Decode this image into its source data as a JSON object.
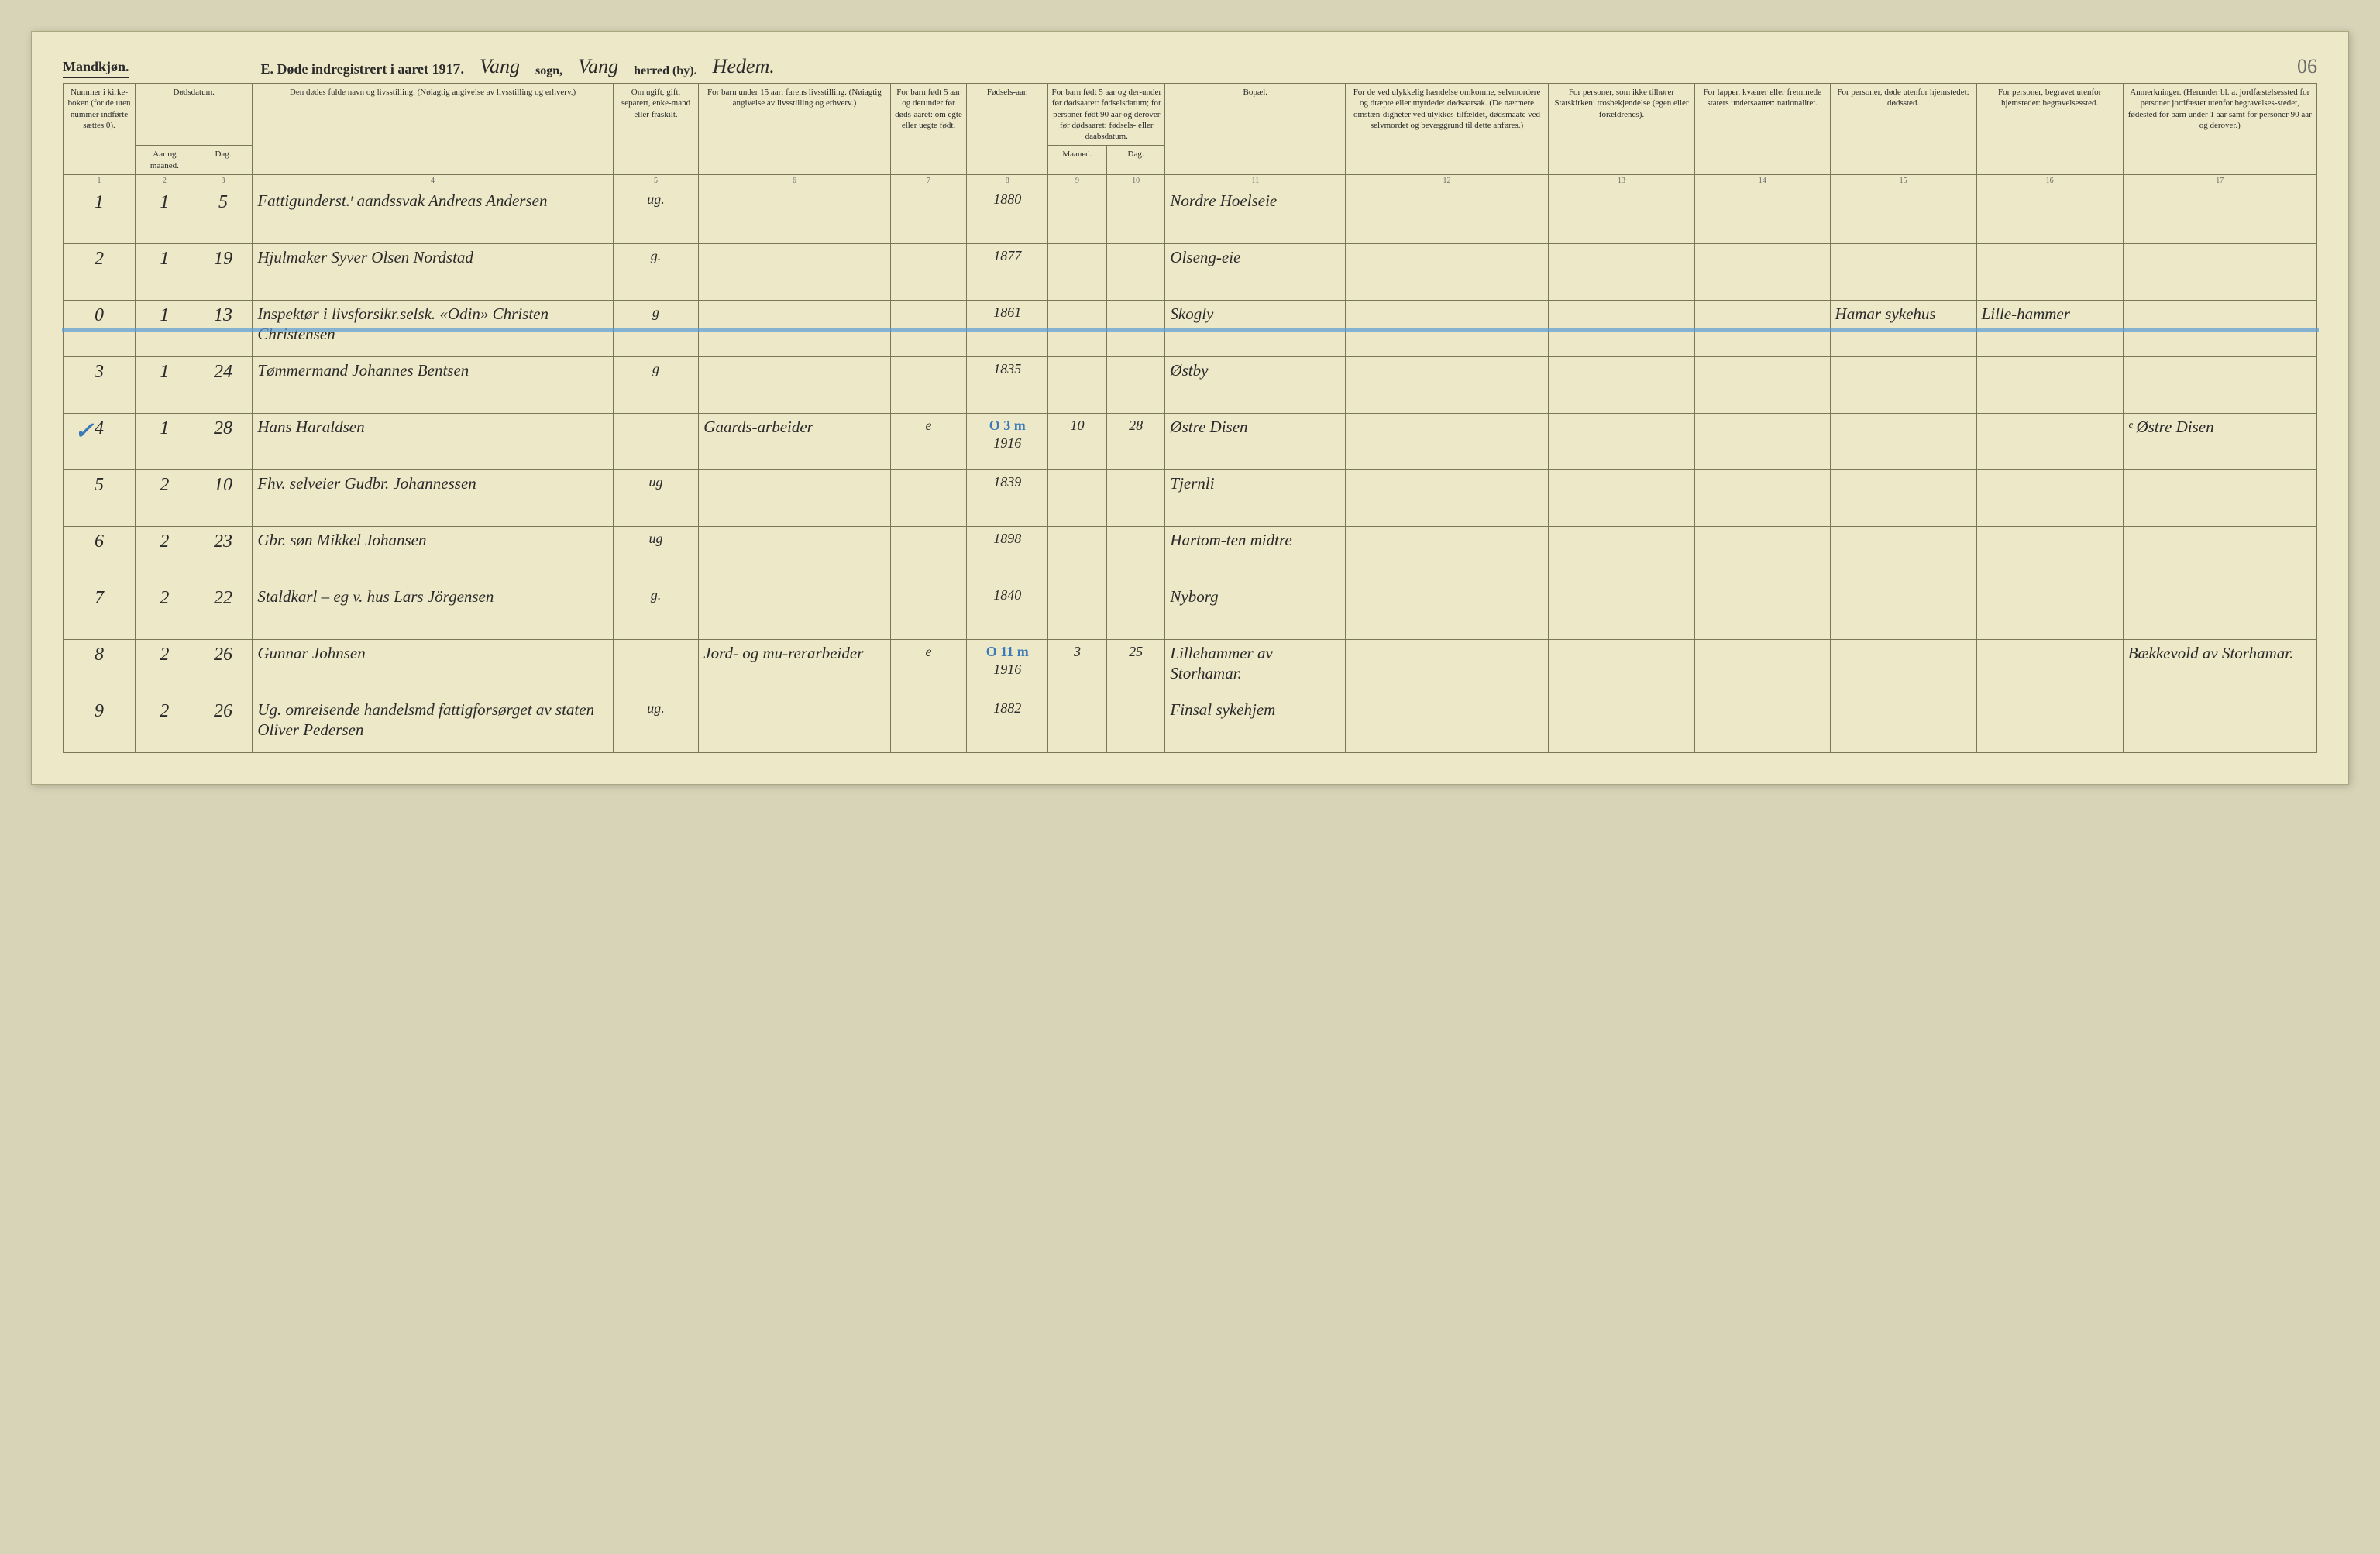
{
  "header": {
    "gender": "Mandkjøn.",
    "title_prefix": "E.  Døde indregistrert i aaret 191",
    "year_suffix": "7",
    "period": ".",
    "sogn_value": "Vang",
    "sogn_label": "sogn,",
    "herred_value": "Vang",
    "herred_label": "herred (by).",
    "fylke_value": "Hedem.",
    "page_number": "06"
  },
  "columns": {
    "c1": "Nummer i kirke-boken (for de uten nummer indførte sættes 0).",
    "c2a": "Dødsdatum.",
    "c2b": "Aar og maaned.",
    "c2c": "Dag.",
    "c4": "Den dødes fulde navn og livsstilling. (Nøiagtig angivelse av livsstilling og erhverv.)",
    "c5": "Om ugift, gift, separert, enke-mand eller fraskilt.",
    "c6": "For barn under 15 aar: farens livsstilling. (Nøiagtig angivelse av livsstilling og erhverv.)",
    "c7": "For barn født 5 aar og derunder før døds-aaret: om egte eller uegte født.",
    "c8": "Fødsels-aar.",
    "c9a": "For barn født 5 aar og der-under før dødsaaret: fødselsdatum; for personer født 90 aar og derover før dødsaaret: fødsels- eller daabsdatum.",
    "c9b": "Maaned.",
    "c9c": "Dag.",
    "c11": "Bopæl.",
    "c12": "For de ved ulykkelig hændelse omkomne, selvmordere og dræpte eller myrdede: dødsaarsak. (De nærmere omstæn-digheter ved ulykkes-tilfældet, dødsmaate ved selvmordet og bevæggrund til dette anføres.)",
    "c13": "For personer, som ikke tilhører Statskirken: trosbekjendelse (egen eller forældrenes).",
    "c14": "For lapper, kvæner eller fremmede staters undersaatter: nationalitet.",
    "c15": "For personer, døde utenfor hjemstedet: dødssted.",
    "c16": "For personer, begravet utenfor hjemstedet: begravelsessted.",
    "c17": "Anmerkninger. (Herunder bl. a. jordfæstelsessted for personer jordfæstet utenfor begravelses-stedet, fødested for barn under 1 aar samt for personer 90 aar og derover.)"
  },
  "colnums": [
    "1",
    "2",
    "3",
    "4",
    "5",
    "6",
    "7",
    "8",
    "9",
    "10",
    "11",
    "12",
    "13",
    "14",
    "15",
    "16",
    "17"
  ],
  "rows": [
    {
      "n": "1",
      "mo": "1",
      "dag": "5",
      "name": "Fattigunderst.ᵗ aandssvak Andreas Andersen",
      "status": "ug.",
      "father": "",
      "egte": "",
      "year": "1880",
      "fm": "",
      "fd": "",
      "bopel": "Nordre Hoelseie",
      "c12": "",
      "c13": "",
      "c14": "",
      "c15": "",
      "c16": "",
      "c17": "",
      "struck": false,
      "blue": "",
      "check": false
    },
    {
      "n": "2",
      "mo": "1",
      "dag": "19",
      "name": "Hjulmaker Syver Olsen Nordstad",
      "status": "g.",
      "father": "",
      "egte": "",
      "year": "1877",
      "fm": "",
      "fd": "",
      "bopel": "Olseng-eie",
      "c12": "",
      "c13": "",
      "c14": "",
      "c15": "",
      "c16": "",
      "c17": "",
      "struck": false,
      "blue": "",
      "check": false
    },
    {
      "n": "0",
      "mo": "1",
      "dag": "13",
      "name": "Inspektør i livsforsikr.selsk. «Odin» Christen Christensen",
      "status": "g",
      "father": "",
      "egte": "",
      "year": "1861",
      "fm": "",
      "fd": "",
      "bopel": "Skogly",
      "c12": "",
      "c13": "",
      "c14": "",
      "c15": "Hamar sykehus",
      "c16": "Lille-hammer",
      "c17": "",
      "struck": true,
      "blue": "",
      "check": false
    },
    {
      "n": "3",
      "mo": "1",
      "dag": "24",
      "name": "Tømmermand Johannes Bentsen",
      "status": "g",
      "father": "",
      "egte": "",
      "year": "1835",
      "fm": "",
      "fd": "",
      "bopel": "Østby",
      "c12": "",
      "c13": "",
      "c14": "",
      "c15": "",
      "c16": "",
      "c17": "",
      "struck": false,
      "blue": "",
      "check": false
    },
    {
      "n": "4",
      "mo": "1",
      "dag": "28",
      "name": "Hans Haraldsen",
      "status": "",
      "father": "Gaards-arbeider",
      "egte": "e",
      "year": "1916",
      "fm": "10",
      "fd": "28",
      "bopel": "Østre Disen",
      "c12": "",
      "c13": "",
      "c14": "",
      "c15": "",
      "c16": "",
      "c17": "ᵉ Østre Disen",
      "struck": false,
      "blue": "O 3 m",
      "check": true
    },
    {
      "n": "5",
      "mo": "2",
      "dag": "10",
      "name": "Fhv. selveier Gudbr. Johannessen",
      "status": "ug",
      "father": "",
      "egte": "",
      "year": "1839",
      "fm": "",
      "fd": "",
      "bopel": "Tjernli",
      "c12": "",
      "c13": "",
      "c14": "",
      "c15": "",
      "c16": "",
      "c17": "",
      "struck": false,
      "blue": "",
      "check": false
    },
    {
      "n": "6",
      "mo": "2",
      "dag": "23",
      "name": "Gbr. søn Mikkel Johansen",
      "status": "ug",
      "father": "",
      "egte": "",
      "year": "1898",
      "fm": "",
      "fd": "",
      "bopel": "Hartom-ten midtre",
      "c12": "",
      "c13": "",
      "c14": "",
      "c15": "",
      "c16": "",
      "c17": "",
      "struck": false,
      "blue": "",
      "check": false
    },
    {
      "n": "7",
      "mo": "2",
      "dag": "22",
      "name": "Staldkarl – eg v. hus Lars Jörgensen",
      "status": "g.",
      "father": "",
      "egte": "",
      "year": "1840",
      "fm": "",
      "fd": "",
      "bopel": "Nyborg",
      "c12": "",
      "c13": "",
      "c14": "",
      "c15": "",
      "c16": "",
      "c17": "",
      "struck": false,
      "blue": "",
      "check": false
    },
    {
      "n": "8",
      "mo": "2",
      "dag": "26",
      "name": "Gunnar Johnsen",
      "status": "",
      "father": "Jord- og mu-rerarbeider",
      "egte": "e",
      "year": "1916",
      "fm": "3",
      "fd": "25",
      "bopel": "Lillehammer av Storhamar.",
      "c12": "",
      "c13": "",
      "c14": "",
      "c15": "",
      "c16": "",
      "c17": "Bækkevold av Storhamar.",
      "struck": false,
      "blue": "O 11 m",
      "check": false
    },
    {
      "n": "9",
      "mo": "2",
      "dag": "26",
      "name": "Ug. omreisende handelsmd fattigforsørget av staten Oliver Pedersen",
      "status": "ug.",
      "father": "",
      "egte": "",
      "year": "1882",
      "fm": "",
      "fd": "",
      "bopel": "Finsal sykehjem",
      "c12": "",
      "c13": "",
      "c14": "",
      "c15": "",
      "c16": "",
      "c17": "",
      "struck": false,
      "blue": "",
      "check": false
    }
  ],
  "style": {
    "page_bg": "#ece8c8",
    "body_bg": "#d8d4b8",
    "border": "#7a765a",
    "strike_blue": "#5a9bd4",
    "ink": "#2a2a2a",
    "header_fontsize_pt": 14,
    "cell_fontsize_pt": 9,
    "script_fontsize_pt": 18
  }
}
